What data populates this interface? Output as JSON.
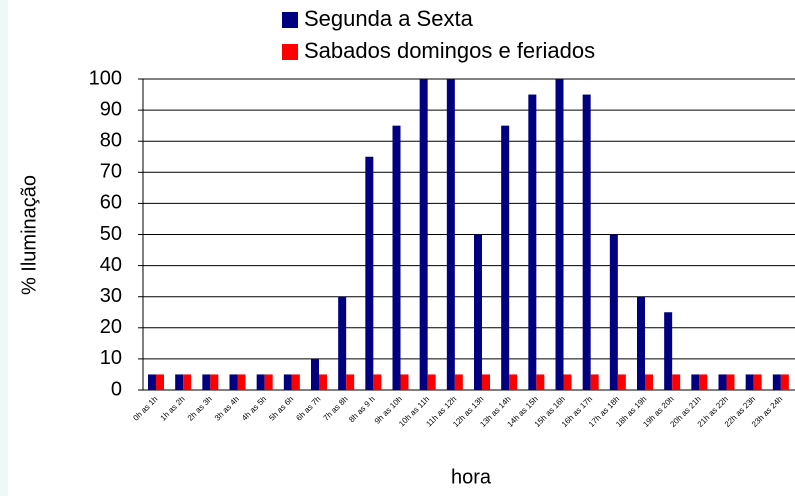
{
  "chart_data": {
    "type": "bar",
    "y_label": "% Iluminação",
    "x_label": "hora",
    "categories": [
      "0h as 1h",
      "1h as 2h",
      "2h as 3h",
      "3h as 4h",
      "4h as 5h",
      "5h as 6h",
      "6h as 7h",
      "7h as 8h",
      "8h as 9 h",
      "9h as 10h",
      "10h as 11h",
      "11h as 12h",
      "12h as 13h",
      "13h as 14h",
      "14h as 15h",
      "15h as 16h",
      "16h as 17h",
      "17h as 18h",
      "18h as 19h",
      "19h as 20h",
      "20h as 21h",
      "21h as 22h",
      "22h as 23h",
      "23h as 24h"
    ],
    "series": [
      {
        "name": "Segunda a Sexta",
        "color": "#000080",
        "values": [
          5,
          5,
          5,
          5,
          5,
          5,
          10,
          30,
          75,
          85,
          100,
          100,
          50,
          85,
          95,
          100,
          95,
          50,
          30,
          25,
          5,
          5,
          5,
          5
        ]
      },
      {
        "name": "Sabados domingos e feriados",
        "color": "#ff0000",
        "values": [
          5,
          5,
          5,
          5,
          5,
          5,
          5,
          5,
          5,
          5,
          5,
          5,
          5,
          5,
          5,
          5,
          5,
          5,
          5,
          5,
          5,
          5,
          5,
          5
        ]
      }
    ],
    "ylim": [
      0,
      100
    ],
    "yticks": [
      0,
      10,
      20,
      30,
      40,
      50,
      60,
      70,
      80,
      90,
      100
    ],
    "grid": true,
    "legend": "top"
  }
}
